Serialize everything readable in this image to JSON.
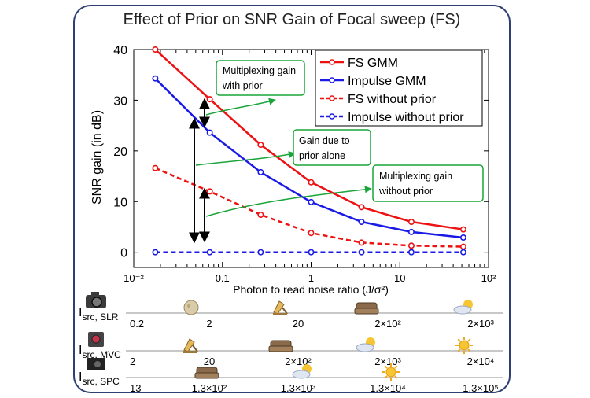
{
  "chart_data": {
    "type": "line",
    "title": "Effect of Prior on SNR Gain of Focal sweep (FS)",
    "xlabel": "Photon to read noise ratio (J/σ²)",
    "ylabel": "SNR gain (in dB)",
    "xscale": "log",
    "xlim": [
      0.01,
      100
    ],
    "ylim": [
      -3,
      40
    ],
    "x_tick_labels": [
      "10⁻²",
      "0.1",
      "1",
      "10",
      "10²"
    ],
    "x_tick_values": [
      0.01,
      0.1,
      1,
      10,
      100
    ],
    "y_tick_labels": [
      "0",
      "10",
      "20",
      "30",
      "40"
    ],
    "y_tick_values": [
      0,
      10,
      20,
      30,
      40
    ],
    "x": [
      0.0175,
      0.072,
      0.27,
      1.0,
      3.7,
      13.5,
      52
    ],
    "series": [
      {
        "name": "FS GMM",
        "color": "#ee1111",
        "dashed": false,
        "values": [
          40.0,
          30.2,
          21.2,
          13.8,
          8.9,
          6.0,
          4.5
        ]
      },
      {
        "name": "Impulse GMM",
        "color": "#1a1ae6",
        "dashed": false,
        "values": [
          34.3,
          23.6,
          15.8,
          9.9,
          6.0,
          4.0,
          2.9
        ]
      },
      {
        "name": "FS without prior",
        "color": "#ee1111",
        "dashed": true,
        "values": [
          16.6,
          12.0,
          7.4,
          3.8,
          1.9,
          1.3,
          1.1
        ]
      },
      {
        "name": "Impulse without prior",
        "color": "#1a1ae6",
        "dashed": true,
        "values": [
          0,
          0,
          0,
          0,
          0,
          0,
          0
        ]
      }
    ],
    "legend_position": "top-right",
    "annotations": [
      {
        "text": [
          "Multiplexing gain",
          "with prior"
        ]
      },
      {
        "text": [
          "Gain due to",
          "prior alone"
        ]
      },
      {
        "text": [
          "Multiplexing gain",
          "without prior"
        ]
      }
    ]
  },
  "scales": [
    {
      "label_main": "I",
      "label_sub": "src, SLR",
      "camera": "slr-camera-icon",
      "values": [
        "0.2",
        "2",
        "20",
        "2×10²",
        "2×10³"
      ],
      "icons": [
        "moon-icon",
        "lamp-icon",
        "sofa-icon",
        "cloud-sun-icon"
      ]
    },
    {
      "label_main": "I",
      "label_sub": "src, MVC",
      "camera": "machine-vision-camera-icon",
      "values": [
        "2",
        "20",
        "2×10²",
        "2×10³",
        "2×10⁴"
      ],
      "icons": [
        "lamp-icon",
        "sofa-icon",
        "cloud-sun-icon",
        "sun-icon"
      ]
    },
    {
      "label_main": "I",
      "label_sub": "src, SPC",
      "camera": "smartphone-camera-icon",
      "values": [
        "13",
        "1.3×10²",
        "1.3×10³",
        "1.3×10⁴",
        "1.3×10⁵"
      ],
      "icons": [
        "sofa-icon",
        "cloud-sun-icon",
        "sun-icon"
      ]
    }
  ]
}
